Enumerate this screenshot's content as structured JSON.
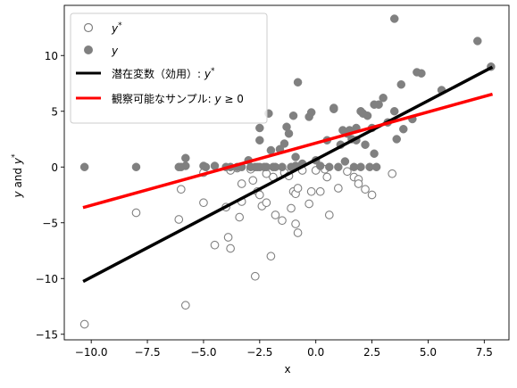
{
  "chart_data": {
    "type": "scatter",
    "xlabel": "x",
    "ylabel": "y and y*",
    "xlim": [
      -11.2,
      8.6
    ],
    "ylim": [
      -15.5,
      14.5
    ],
    "xticks": [
      -10.0,
      -7.5,
      -5.0,
      -2.5,
      0.0,
      2.5,
      5.0,
      7.5
    ],
    "xtick_labels": [
      "−10.0",
      "−7.5",
      "−5.0",
      "−2.5",
      "0.0",
      "2.5",
      "5.0",
      "7.5"
    ],
    "yticks": [
      -15,
      -10,
      -5,
      0,
      5,
      10
    ],
    "ytick_labels": [
      "−15",
      "−10",
      "−5",
      "0",
      "5",
      "10"
    ],
    "grid": false,
    "legend_position": "top-left",
    "legend": [
      {
        "label": "y*",
        "marker": "open-circle",
        "color": "#808080"
      },
      {
        "label": "y",
        "marker": "filled-circle",
        "color": "#808080"
      },
      {
        "label": "潜在変数（効用）: y*",
        "marker": "line",
        "color": "#000000"
      },
      {
        "label": "観察可能なサンプル: y ≥ 0",
        "marker": "line",
        "color": "#ff0000"
      }
    ],
    "series": [
      {
        "kind": "open_circles",
        "color": "#808080",
        "points": [
          [
            -10.3,
            -14.1
          ],
          [
            -8.0,
            -4.1
          ],
          [
            -6.1,
            -4.7
          ],
          [
            -6.0,
            -2.0
          ],
          [
            -5.8,
            -12.4
          ],
          [
            -5.0,
            -0.5
          ],
          [
            -5.0,
            -3.2
          ],
          [
            -4.5,
            -7.0
          ],
          [
            -4.0,
            -3.6
          ],
          [
            -3.9,
            -6.3
          ],
          [
            -3.8,
            -7.3
          ],
          [
            -3.8,
            -0.3
          ],
          [
            -3.5,
            -0.1
          ],
          [
            -3.4,
            -4.5
          ],
          [
            -3.3,
            -1.5
          ],
          [
            -3.3,
            -3.1
          ],
          [
            -2.9,
            -0.2
          ],
          [
            -2.8,
            -1.2
          ],
          [
            -2.7,
            -9.8
          ],
          [
            -2.6,
            -2.2
          ],
          [
            -2.5,
            -2.5
          ],
          [
            -2.4,
            -3.5
          ],
          [
            -2.2,
            -0.6
          ],
          [
            -2.2,
            -3.2
          ],
          [
            -2.0,
            -8.0
          ],
          [
            -1.9,
            -0.9
          ],
          [
            -1.8,
            -4.3
          ],
          [
            -1.5,
            -4.8
          ],
          [
            -1.4,
            -0.5
          ],
          [
            -1.2,
            -0.8
          ],
          [
            -1.1,
            -3.7
          ],
          [
            -1.0,
            -2.2
          ],
          [
            -0.9,
            -2.4
          ],
          [
            -0.9,
            -5.1
          ],
          [
            -0.8,
            -5.9
          ],
          [
            -0.8,
            -1.9
          ],
          [
            -0.6,
            -0.3
          ],
          [
            -0.3,
            -3.3
          ],
          [
            -0.2,
            -2.2
          ],
          [
            0.0,
            -0.3
          ],
          [
            0.2,
            -2.2
          ],
          [
            0.4,
            -0.2
          ],
          [
            0.6,
            -4.3
          ],
          [
            0.5,
            -0.9
          ],
          [
            1.0,
            -1.9
          ],
          [
            1.4,
            -0.4
          ],
          [
            1.7,
            -0.9
          ],
          [
            1.9,
            -1.1
          ],
          [
            1.9,
            -1.5
          ],
          [
            2.2,
            -2.0
          ],
          [
            2.5,
            -2.5
          ],
          [
            3.4,
            -0.6
          ]
        ]
      },
      {
        "kind": "filled_circles",
        "color": "#808080",
        "points": [
          [
            -10.3,
            0.0
          ],
          [
            -8.0,
            0.0
          ],
          [
            -6.1,
            0.0
          ],
          [
            -6.0,
            0.0
          ],
          [
            -5.8,
            0.8
          ],
          [
            -5.8,
            0.1
          ],
          [
            -5.0,
            0.1
          ],
          [
            -4.9,
            0.0
          ],
          [
            -4.5,
            0.1
          ],
          [
            -4.0,
            0.0
          ],
          [
            -3.8,
            0.0
          ],
          [
            -3.5,
            0.0
          ],
          [
            -3.3,
            0.0
          ],
          [
            -3.0,
            0.6
          ],
          [
            -2.9,
            0.0
          ],
          [
            -2.7,
            0.0
          ],
          [
            -2.6,
            0.0
          ],
          [
            -2.5,
            0.0
          ],
          [
            -2.5,
            2.4
          ],
          [
            -2.5,
            3.5
          ],
          [
            -2.3,
            0.0
          ],
          [
            -2.2,
            0.0
          ],
          [
            -2.1,
            4.8
          ],
          [
            -2.0,
            1.5
          ],
          [
            -1.9,
            0.0
          ],
          [
            -1.8,
            0.0
          ],
          [
            -1.6,
            1.6
          ],
          [
            -1.5,
            0.0
          ],
          [
            -1.4,
            2.1
          ],
          [
            -1.3,
            3.6
          ],
          [
            -1.2,
            3.0
          ],
          [
            -1.1,
            0.0
          ],
          [
            -1.0,
            4.6
          ],
          [
            -0.9,
            0.1
          ],
          [
            -0.9,
            0.9
          ],
          [
            -0.8,
            7.6
          ],
          [
            -0.6,
            0.3
          ],
          [
            -0.3,
            4.5
          ],
          [
            -0.2,
            4.9
          ],
          [
            0.0,
            0.6
          ],
          [
            0.2,
            0.1
          ],
          [
            0.5,
            2.4
          ],
          [
            0.6,
            0.0
          ],
          [
            0.8,
            5.3
          ],
          [
            0.8,
            5.2
          ],
          [
            1.0,
            0.0
          ],
          [
            1.1,
            2.0
          ],
          [
            1.2,
            3.3
          ],
          [
            1.3,
            0.5
          ],
          [
            1.4,
            3.0
          ],
          [
            1.5,
            3.3
          ],
          [
            1.6,
            2.5
          ],
          [
            1.7,
            0.0
          ],
          [
            1.8,
            3.5
          ],
          [
            1.8,
            2.4
          ],
          [
            2.0,
            5.0
          ],
          [
            2.0,
            0.0
          ],
          [
            2.1,
            4.8
          ],
          [
            2.2,
            2.0
          ],
          [
            2.3,
            4.6
          ],
          [
            2.4,
            0.0
          ],
          [
            2.5,
            3.5
          ],
          [
            2.6,
            5.6
          ],
          [
            2.6,
            1.2
          ],
          [
            2.7,
            0.0
          ],
          [
            2.8,
            5.6
          ],
          [
            3.0,
            6.2
          ],
          [
            3.2,
            4.0
          ],
          [
            3.5,
            13.3
          ],
          [
            3.5,
            5.0
          ],
          [
            3.6,
            2.5
          ],
          [
            3.8,
            7.4
          ],
          [
            3.9,
            3.4
          ],
          [
            4.3,
            4.3
          ],
          [
            4.5,
            8.5
          ],
          [
            4.7,
            8.4
          ],
          [
            5.6,
            6.9
          ],
          [
            7.2,
            11.3
          ],
          [
            7.8,
            9.0
          ]
        ]
      },
      {
        "kind": "line",
        "color": "#000000",
        "points": [
          [
            -10.3,
            -10.2
          ],
          [
            7.8,
            8.9
          ]
        ]
      },
      {
        "kind": "line",
        "color": "#ff0000",
        "points": [
          [
            -10.3,
            -3.6
          ],
          [
            7.8,
            6.5
          ]
        ]
      }
    ]
  }
}
